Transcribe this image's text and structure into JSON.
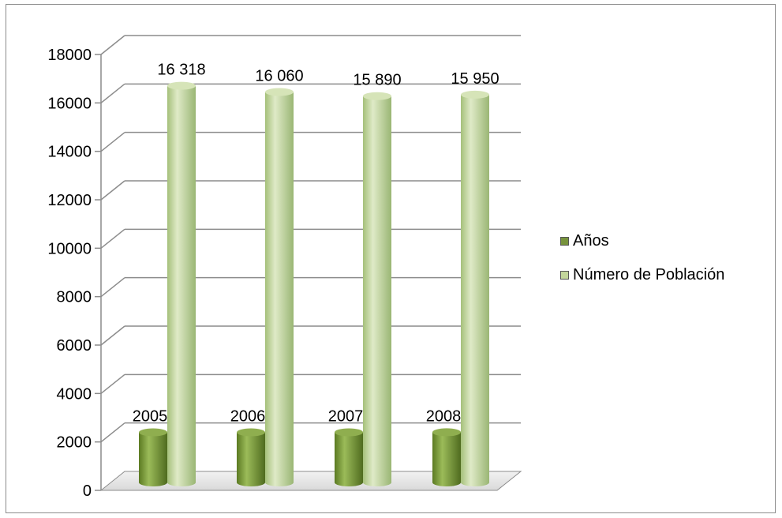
{
  "chart_data": {
    "type": "bar",
    "categories": [
      "2005",
      "2006",
      "2007",
      "2008"
    ],
    "series": [
      {
        "name": "Años",
        "values": [
          2005,
          2006,
          2007,
          2008
        ],
        "labels": [
          "2005",
          "2006",
          "2007",
          "2008"
        ],
        "color": "#77933c"
      },
      {
        "name": "Número de Población",
        "values": [
          16318,
          16060,
          15890,
          15950
        ],
        "labels": [
          "16 318",
          "16 060",
          "15 890",
          "15 950"
        ],
        "color": "#c3d69b"
      }
    ],
    "yticks": [
      "0",
      "2000",
      "4000",
      "6000",
      "8000",
      "10000",
      "12000",
      "14000",
      "16000",
      "18000"
    ],
    "ylim": [
      0,
      18000
    ],
    "grid": true,
    "legend_position": "right",
    "title": "",
    "xlabel": "",
    "ylabel": ""
  }
}
